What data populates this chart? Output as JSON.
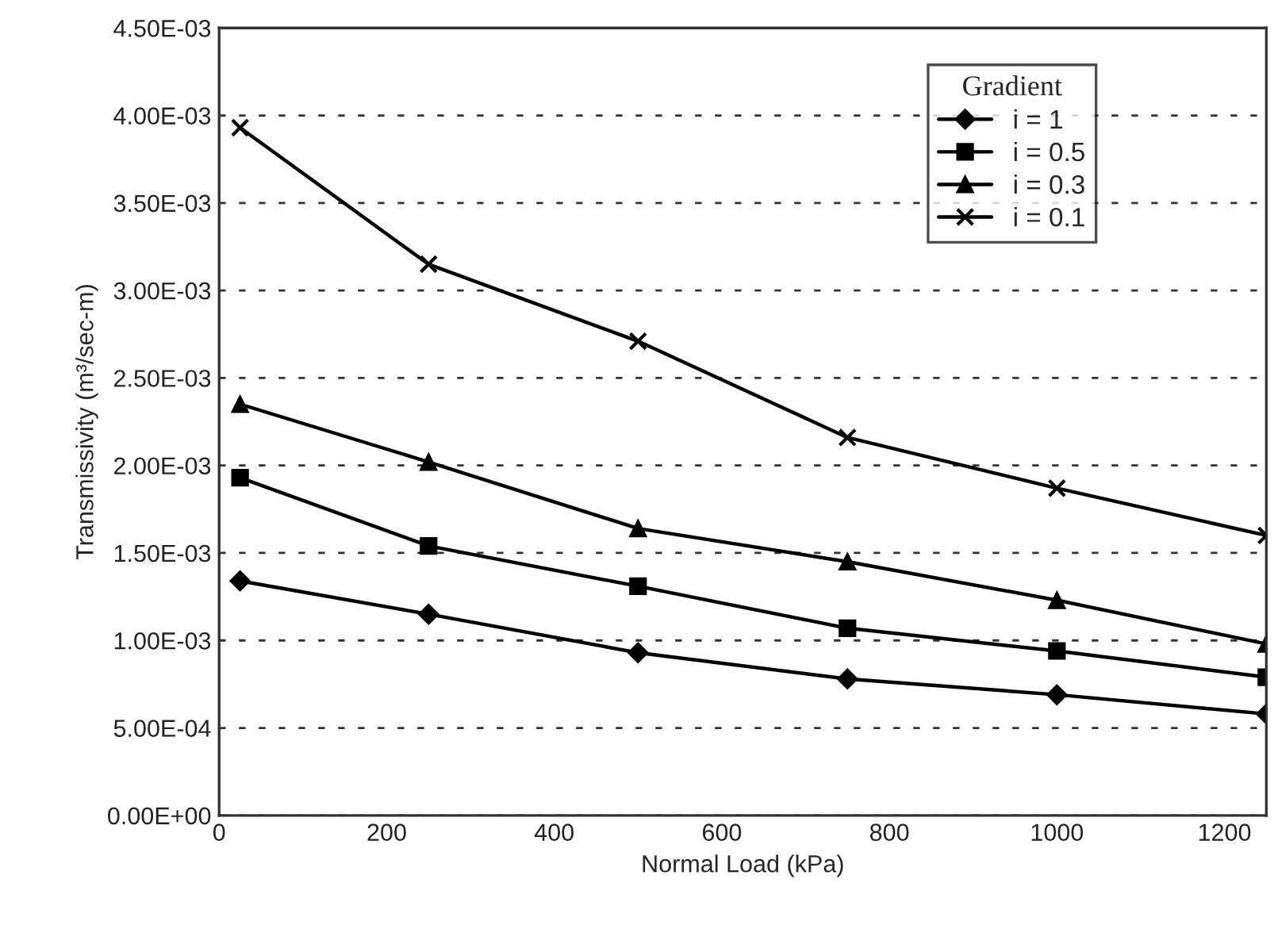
{
  "chart_data": {
    "type": "line",
    "xlabel": "Normal Load (kPa)",
    "ylabel": "Transmissivity (m³/sec-m)",
    "legend_title": "Gradient",
    "legend": "top right",
    "grid": "y",
    "line_style": "solid",
    "x": [
      25,
      250,
      500,
      750,
      1000,
      1250
    ],
    "xlim": [
      0,
      1250
    ],
    "xticks": [
      0,
      200,
      400,
      600,
      800,
      1000,
      1200
    ],
    "ylim": [
      0,
      0.0045
    ],
    "yticks": [
      {
        "value": 0,
        "label": "0.00E+00"
      },
      {
        "value": 0.0005,
        "label": "5.00E-04"
      },
      {
        "value": 0.001,
        "label": "1.00E-03"
      },
      {
        "value": 0.0015,
        "label": "1.50E-03"
      },
      {
        "value": 0.002,
        "label": "2.00E-03"
      },
      {
        "value": 0.0025,
        "label": "2.50E-03"
      },
      {
        "value": 0.003,
        "label": "3.00E-03"
      },
      {
        "value": 0.0035,
        "label": "3.50E-03"
      },
      {
        "value": 0.004,
        "label": "4.00E-03"
      },
      {
        "value": 0.0045,
        "label": "4.50E-03"
      }
    ],
    "series": [
      {
        "name": "i = 1",
        "color": "#000000",
        "marker": "diamond",
        "values": [
          0.00134,
          0.00115,
          0.00093,
          0.00078,
          0.00069,
          0.00058
        ]
      },
      {
        "name": "i = 0.5",
        "color": "#000000",
        "marker": "square",
        "values": [
          0.00193,
          0.00154,
          0.00131,
          0.00107,
          0.00094,
          0.00079
        ]
      },
      {
        "name": "i = 0.3",
        "color": "#000000",
        "marker": "triangle",
        "values": [
          0.00235,
          0.00202,
          0.00164,
          0.00145,
          0.00123,
          0.00098
        ]
      },
      {
        "name": "i = 0.1",
        "color": "#000000",
        "marker": "cross",
        "values": [
          0.00393,
          0.00315,
          0.00271,
          0.00216,
          0.00187,
          0.0016
        ]
      }
    ]
  }
}
